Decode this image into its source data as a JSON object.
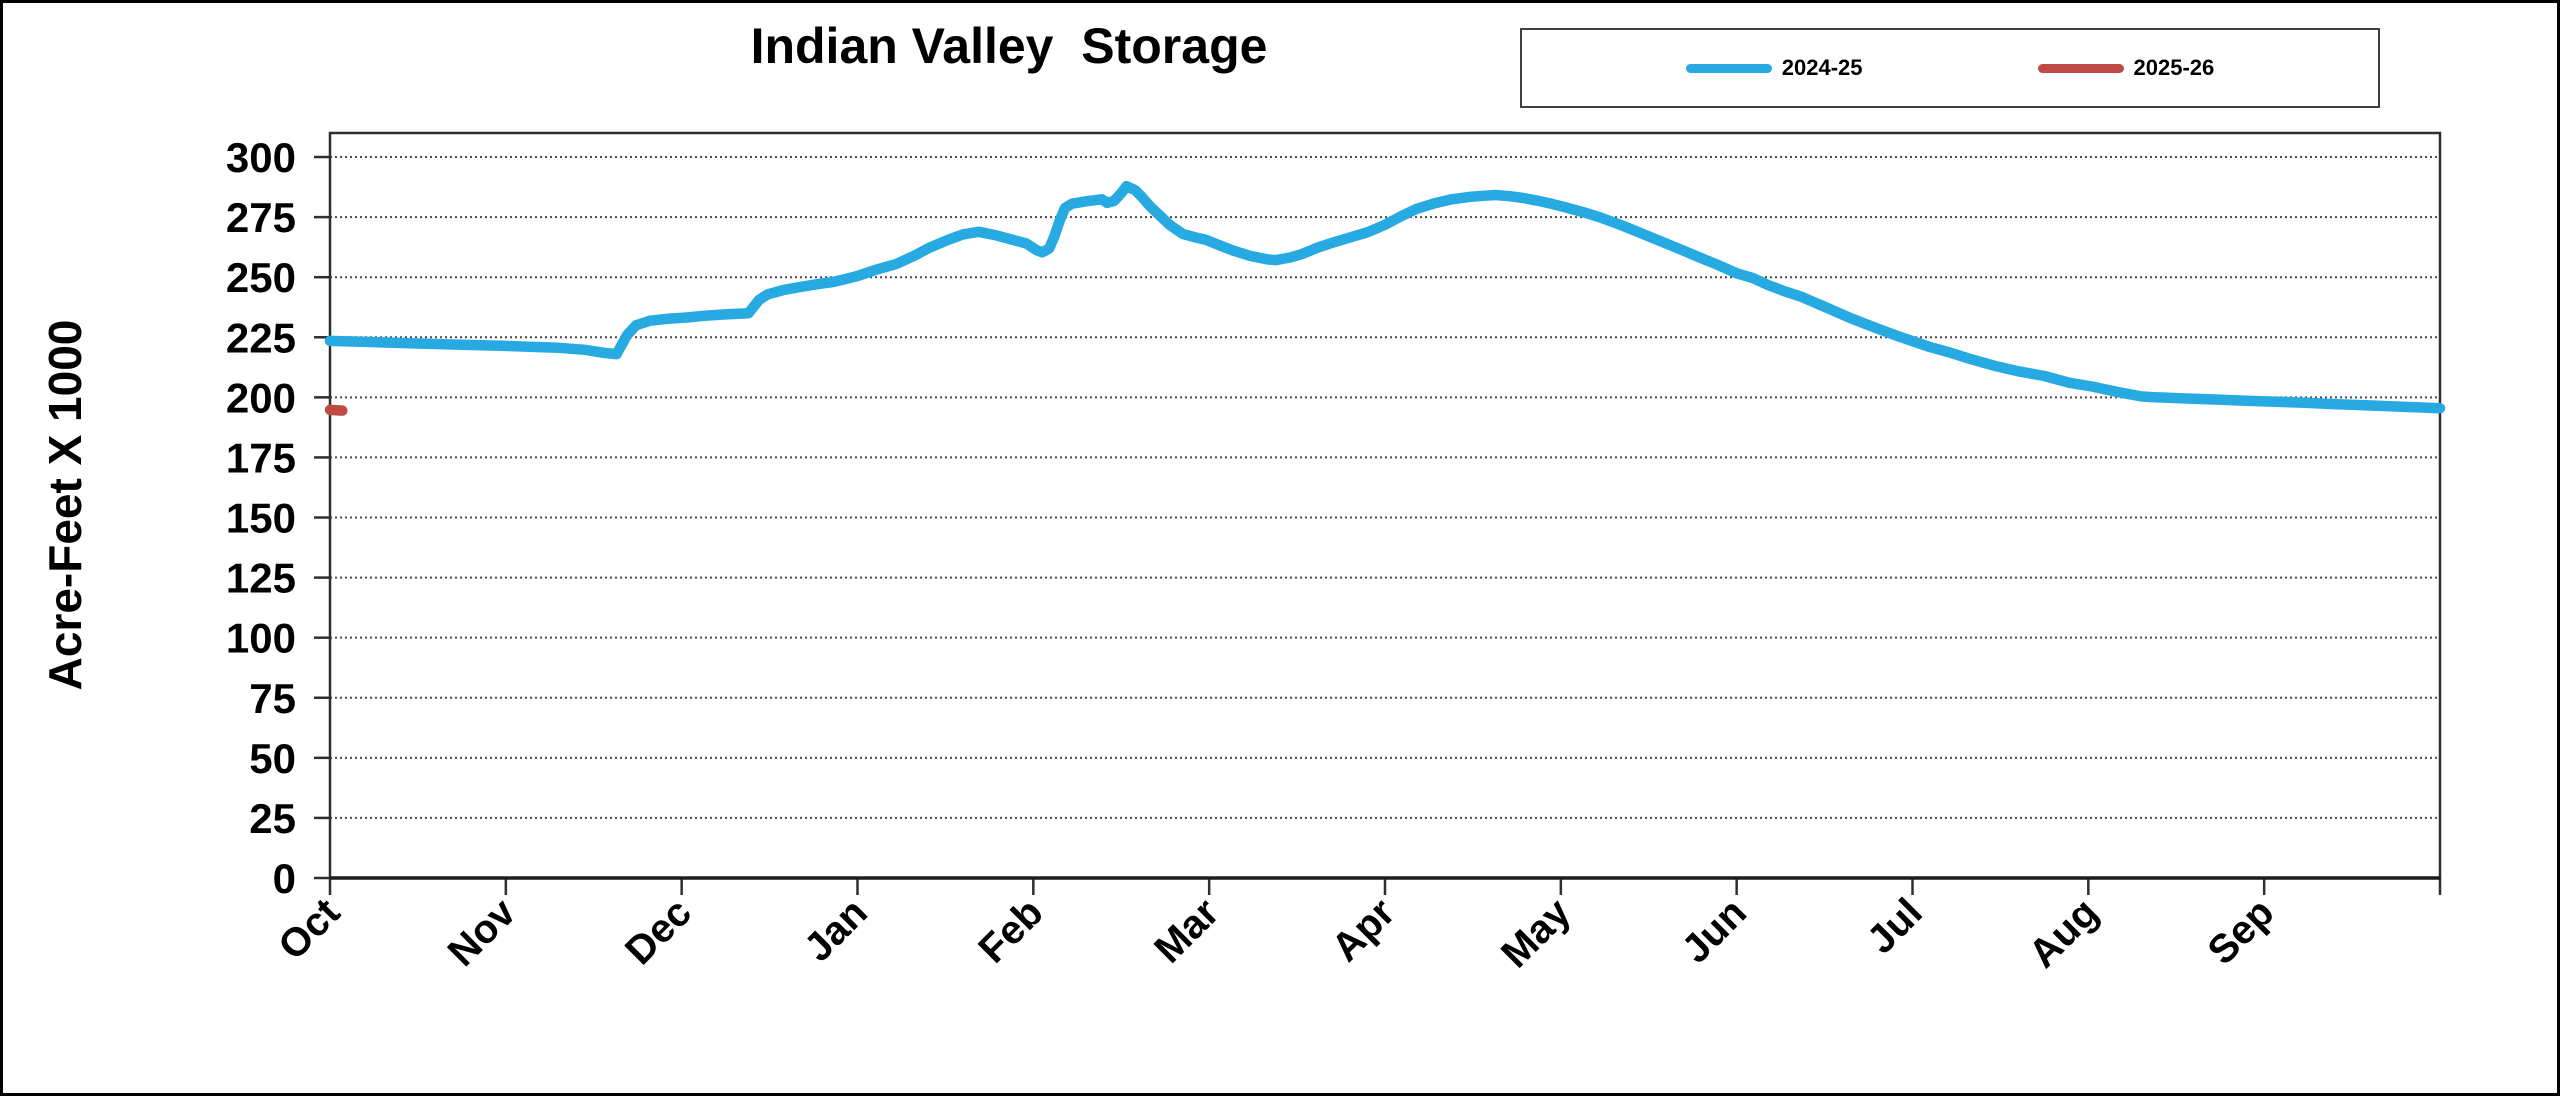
{
  "title": "Indian Valley  Storage",
  "y_axis_title": "Acre-Feet X 1000",
  "legend": {
    "position": "top-right",
    "items": [
      {
        "label": "2024-25",
        "color": "#27a9e2"
      },
      {
        "label": "2025-26",
        "color": "#bf4a45"
      }
    ]
  },
  "colors": {
    "background": "#ffffff",
    "text": "#000000",
    "gridline": "#4a4a4a",
    "axis": "#2f2f2f",
    "axis_baseline": "#1c1c1c",
    "series_2024_25": "#27a9e2",
    "series_2025_26": "#bf4a45"
  },
  "chart_data": {
    "type": "line",
    "title": "Indian Valley  Storage",
    "xlabel": "",
    "ylabel": "Acre-Feet X 1000",
    "x_categories": [
      "Oct",
      "Nov",
      "Dec",
      "Jan",
      "Feb",
      "Mar",
      "Apr",
      "May",
      "Jun",
      "Jul",
      "Aug",
      "Sep"
    ],
    "x_unit": "month index, Oct=0 through Sep=11; fractional part = position within month",
    "ylim": [
      0,
      310
    ],
    "y_ticks": [
      0,
      25,
      50,
      75,
      100,
      125,
      150,
      175,
      200,
      225,
      250,
      275,
      300
    ],
    "grid": "horizontal dotted major gridlines, plot area framed",
    "legend_position": "top-right",
    "x_label_rotation": -45,
    "series": [
      {
        "name": "2024-25",
        "color": "#27a9e2",
        "stroke_width": 10.5,
        "points": [
          [
            0.0,
            223.5
          ],
          [
            0.25,
            223.0
          ],
          [
            0.5,
            222.4
          ],
          [
            0.75,
            221.9
          ],
          [
            1.0,
            221.4
          ],
          [
            1.15,
            221.0
          ],
          [
            1.3,
            220.6
          ],
          [
            1.45,
            219.8
          ],
          [
            1.56,
            218.5
          ],
          [
            1.63,
            218.0
          ],
          [
            1.69,
            226.0
          ],
          [
            1.74,
            230.0
          ],
          [
            1.82,
            231.9
          ],
          [
            1.92,
            232.7
          ],
          [
            2.02,
            233.2
          ],
          [
            2.14,
            234.0
          ],
          [
            2.26,
            234.6
          ],
          [
            2.38,
            235.0
          ],
          [
            2.44,
            240.5
          ],
          [
            2.49,
            242.9
          ],
          [
            2.58,
            244.7
          ],
          [
            2.68,
            246.0
          ],
          [
            2.78,
            247.2
          ],
          [
            2.86,
            248.0
          ],
          [
            2.93,
            249.2
          ],
          [
            3.0,
            250.5
          ],
          [
            3.11,
            253.2
          ],
          [
            3.22,
            255.5
          ],
          [
            3.32,
            258.8
          ],
          [
            3.41,
            262.3
          ],
          [
            3.51,
            265.4
          ],
          [
            3.6,
            267.8
          ],
          [
            3.69,
            268.9
          ],
          [
            3.79,
            267.4
          ],
          [
            3.89,
            265.4
          ],
          [
            3.96,
            264.0
          ],
          [
            4.02,
            261.2
          ],
          [
            4.05,
            260.3
          ],
          [
            4.09,
            262.0
          ],
          [
            4.12,
            267.0
          ],
          [
            4.15,
            273.5
          ],
          [
            4.18,
            278.8
          ],
          [
            4.22,
            280.6
          ],
          [
            4.3,
            281.6
          ],
          [
            4.39,
            282.4
          ],
          [
            4.42,
            280.9
          ],
          [
            4.46,
            281.8
          ],
          [
            4.5,
            285.0
          ],
          [
            4.53,
            287.9
          ],
          [
            4.58,
            286.2
          ],
          [
            4.62,
            283.2
          ],
          [
            4.66,
            279.8
          ],
          [
            4.72,
            275.6
          ],
          [
            4.78,
            271.5
          ],
          [
            4.85,
            268.0
          ],
          [
            4.93,
            266.4
          ],
          [
            4.98,
            265.6
          ],
          [
            5.04,
            263.8
          ],
          [
            5.14,
            261.0
          ],
          [
            5.23,
            258.9
          ],
          [
            5.33,
            257.4
          ],
          [
            5.38,
            257.1
          ],
          [
            5.46,
            258.2
          ],
          [
            5.53,
            259.7
          ],
          [
            5.62,
            262.4
          ],
          [
            5.71,
            264.5
          ],
          [
            5.8,
            266.5
          ],
          [
            5.9,
            268.7
          ],
          [
            6.0,
            271.8
          ],
          [
            6.09,
            275.3
          ],
          [
            6.18,
            278.4
          ],
          [
            6.28,
            280.7
          ],
          [
            6.38,
            282.4
          ],
          [
            6.48,
            283.4
          ],
          [
            6.57,
            283.9
          ],
          [
            6.63,
            284.2
          ],
          [
            6.71,
            283.7
          ],
          [
            6.79,
            282.9
          ],
          [
            6.87,
            281.8
          ],
          [
            6.95,
            280.5
          ],
          [
            7.03,
            279.0
          ],
          [
            7.13,
            277.0
          ],
          [
            7.23,
            274.7
          ],
          [
            7.33,
            272.0
          ],
          [
            7.42,
            269.4
          ],
          [
            7.52,
            266.4
          ],
          [
            7.61,
            263.7
          ],
          [
            7.7,
            261.0
          ],
          [
            7.79,
            258.2
          ],
          [
            7.89,
            255.2
          ],
          [
            8.0,
            251.6
          ],
          [
            8.09,
            249.7
          ],
          [
            8.18,
            246.7
          ],
          [
            8.27,
            244.2
          ],
          [
            8.37,
            241.8
          ],
          [
            8.51,
            237.4
          ],
          [
            8.65,
            232.9
          ],
          [
            8.79,
            228.9
          ],
          [
            8.92,
            225.4
          ],
          [
            9.0,
            223.4
          ],
          [
            9.1,
            220.9
          ],
          [
            9.2,
            218.9
          ],
          [
            9.34,
            215.7
          ],
          [
            9.48,
            212.9
          ],
          [
            9.61,
            210.7
          ],
          [
            9.75,
            208.9
          ],
          [
            9.89,
            206.1
          ],
          [
            10.02,
            204.5
          ],
          [
            10.16,
            202.3
          ],
          [
            10.3,
            200.4
          ],
          [
            10.36,
            200.1
          ],
          [
            10.52,
            199.6
          ],
          [
            10.72,
            199.1
          ],
          [
            10.86,
            198.7
          ],
          [
            11.0,
            198.3
          ],
          [
            11.21,
            197.8
          ],
          [
            11.4,
            197.2
          ],
          [
            11.61,
            196.6
          ],
          [
            11.82,
            196.0
          ],
          [
            12.0,
            195.5
          ]
        ]
      },
      {
        "name": "2025-26",
        "color": "#bf4a45",
        "stroke_width": 10.5,
        "points": [
          [
            0.0,
            194.8
          ],
          [
            0.07,
            194.5
          ]
        ]
      }
    ]
  }
}
